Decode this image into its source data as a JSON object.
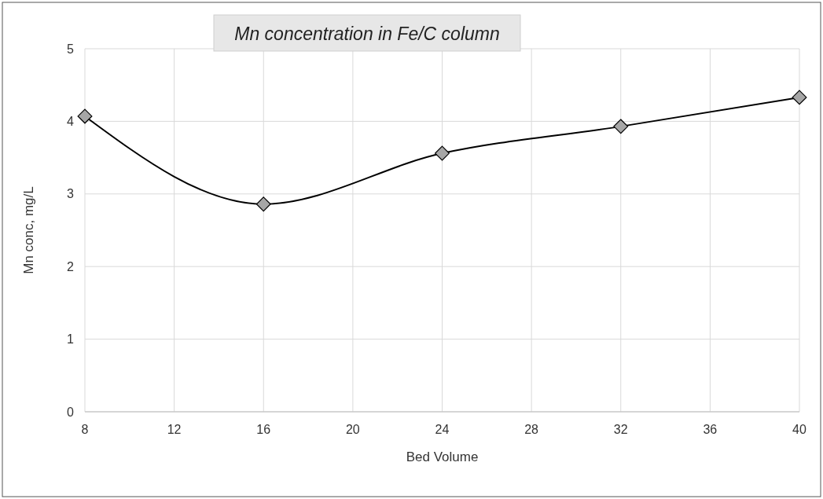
{
  "chart_data": {
    "type": "line",
    "title": "Mn concentration in Fe/C column",
    "xlabel": "Bed Volume",
    "ylabel": "Mn conc, mg/L",
    "x": [
      8,
      16,
      24,
      32,
      40
    ],
    "series": [
      {
        "color": "#000000",
        "values": [
          4.07,
          2.86,
          3.56,
          3.93,
          4.33
        ]
      }
    ],
    "xlim": [
      8,
      40
    ],
    "xticks": [
      8,
      12,
      16,
      20,
      24,
      28,
      32,
      36,
      40
    ],
    "ylim": [
      0,
      5
    ],
    "yticks": [
      0,
      1,
      2,
      3,
      4,
      5
    ],
    "grid": true,
    "marker": "diamond",
    "line_style": "solid"
  }
}
